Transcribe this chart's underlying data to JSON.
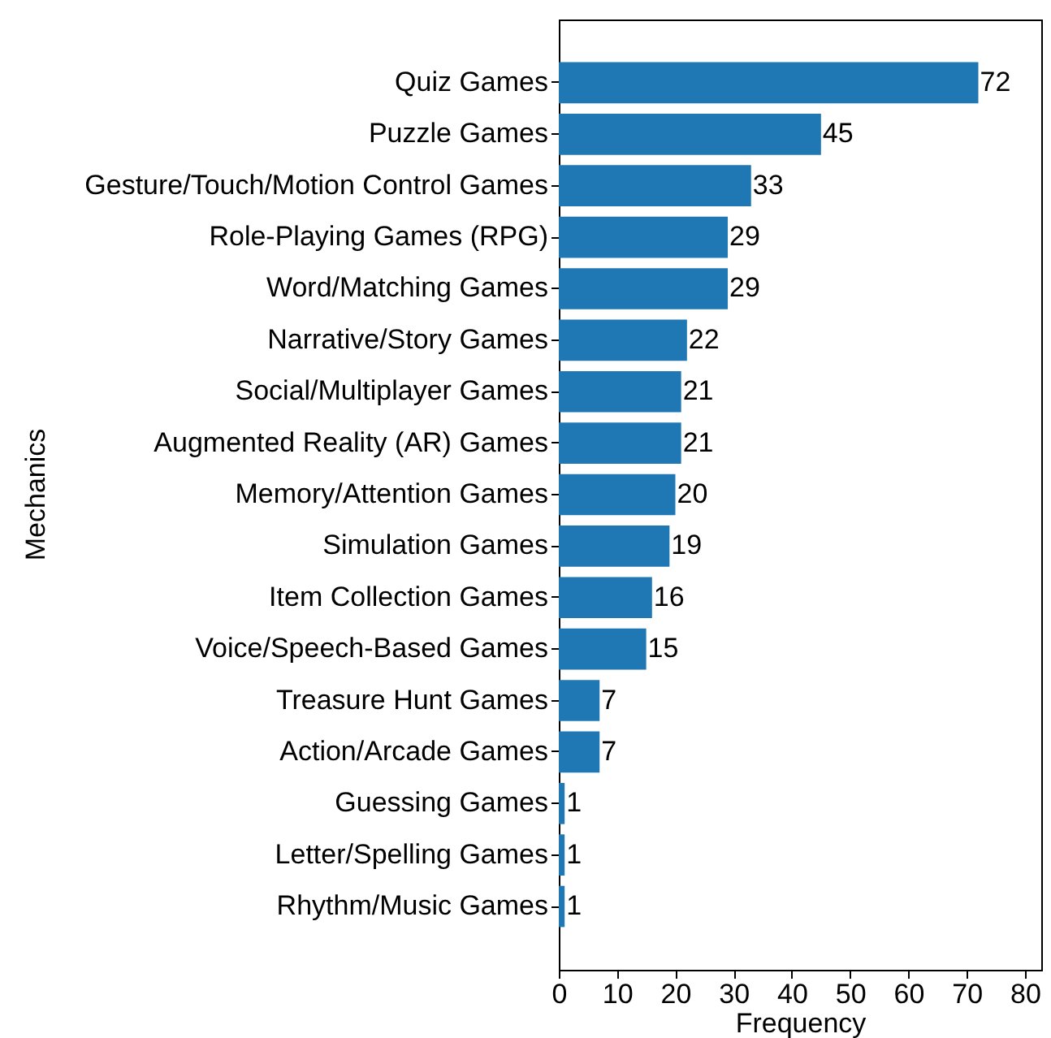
{
  "chart_data": {
    "type": "bar",
    "orientation": "horizontal",
    "xlabel": "Frequency",
    "ylabel": "Mechanics",
    "categories": [
      "Quiz Games",
      "Puzzle Games",
      "Gesture/Touch/Motion Control Games",
      "Role-Playing Games (RPG)",
      "Word/Matching Games",
      "Narrative/Story Games",
      "Social/Multiplayer Games",
      "Augmented Reality (AR) Games",
      "Memory/Attention Games",
      "Simulation Games",
      "Item Collection Games",
      "Voice/Speech-Based Games",
      "Treasure Hunt Games",
      "Action/Arcade Games",
      "Guessing Games",
      "Letter/Spelling Games",
      "Rhythm/Music Games"
    ],
    "values": [
      72,
      45,
      33,
      29,
      29,
      22,
      21,
      21,
      20,
      19,
      16,
      15,
      7,
      7,
      1,
      1,
      1
    ],
    "color": "#1f77b4",
    "xlim": [
      0,
      82.8
    ],
    "xticks": [
      0,
      10,
      20,
      30,
      40,
      50,
      60,
      70,
      80
    ],
    "grid": false,
    "data_labels": true
  }
}
